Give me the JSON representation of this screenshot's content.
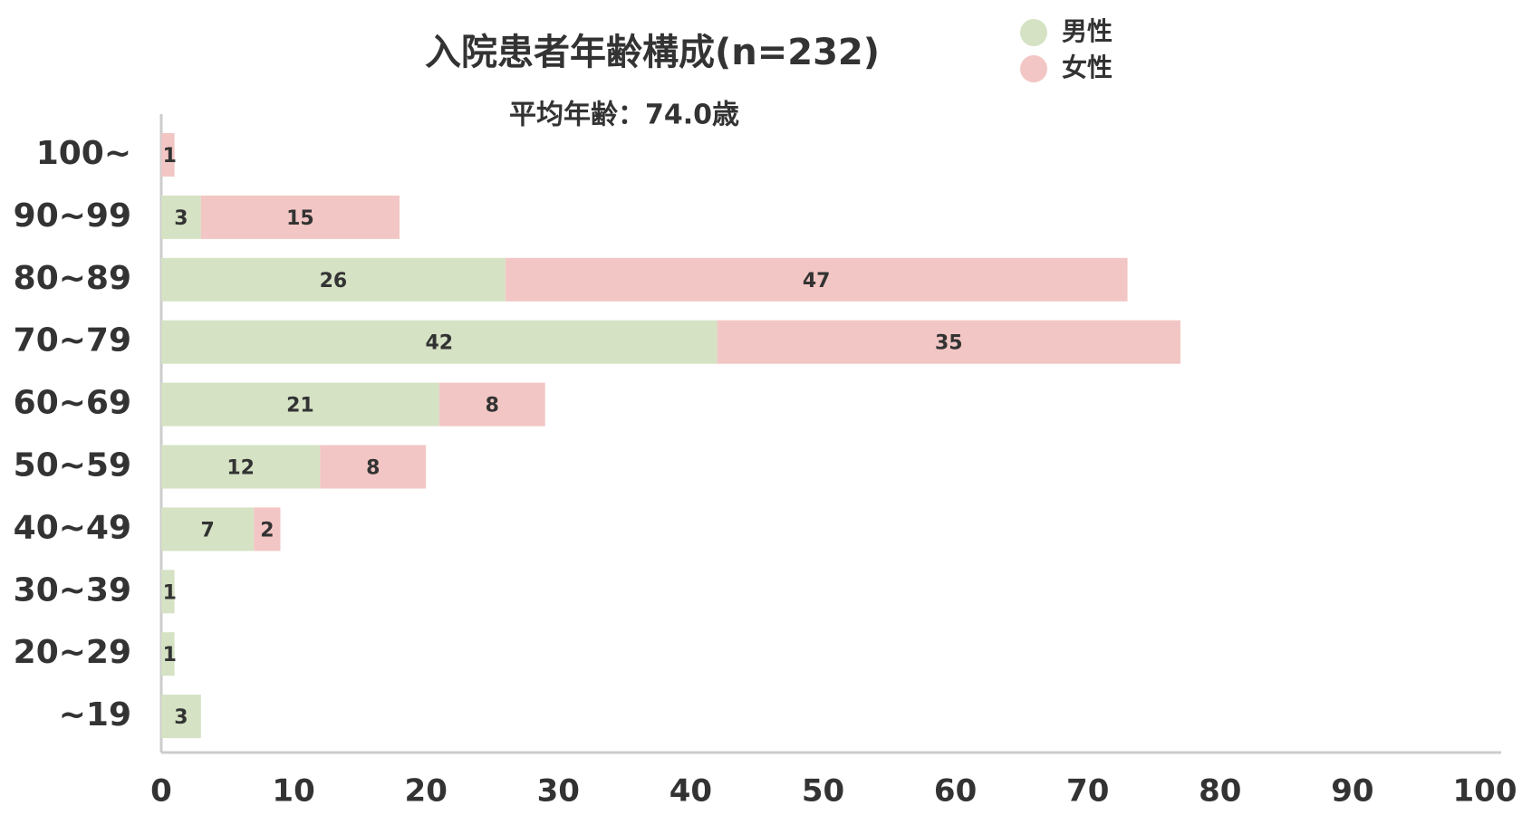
{
  "chart_data": {
    "type": "bar",
    "orientation": "horizontal",
    "stacked": true,
    "title": "入院患者年齢構成(n=232)",
    "subtitle": "平均年齢：74.0歳",
    "categories": [
      "100~",
      "90~99",
      "80~89",
      "70~79",
      "60~69",
      "50~59",
      "40~49",
      "30~39",
      "20~29",
      "~19"
    ],
    "series": [
      {
        "name": "男性",
        "color": "#d5e2c4",
        "values": [
          null,
          3,
          26,
          42,
          21,
          12,
          7,
          1,
          1,
          3
        ]
      },
      {
        "name": "女性",
        "color": "#f2c6c4",
        "values": [
          1,
          15,
          47,
          35,
          8,
          8,
          2,
          null,
          null,
          null
        ]
      }
    ],
    "xlim": [
      0,
      100
    ],
    "xticks": [
      0,
      10,
      20,
      30,
      40,
      50,
      60,
      70,
      80,
      90,
      100
    ],
    "grid": false,
    "legend": "top-right"
  }
}
